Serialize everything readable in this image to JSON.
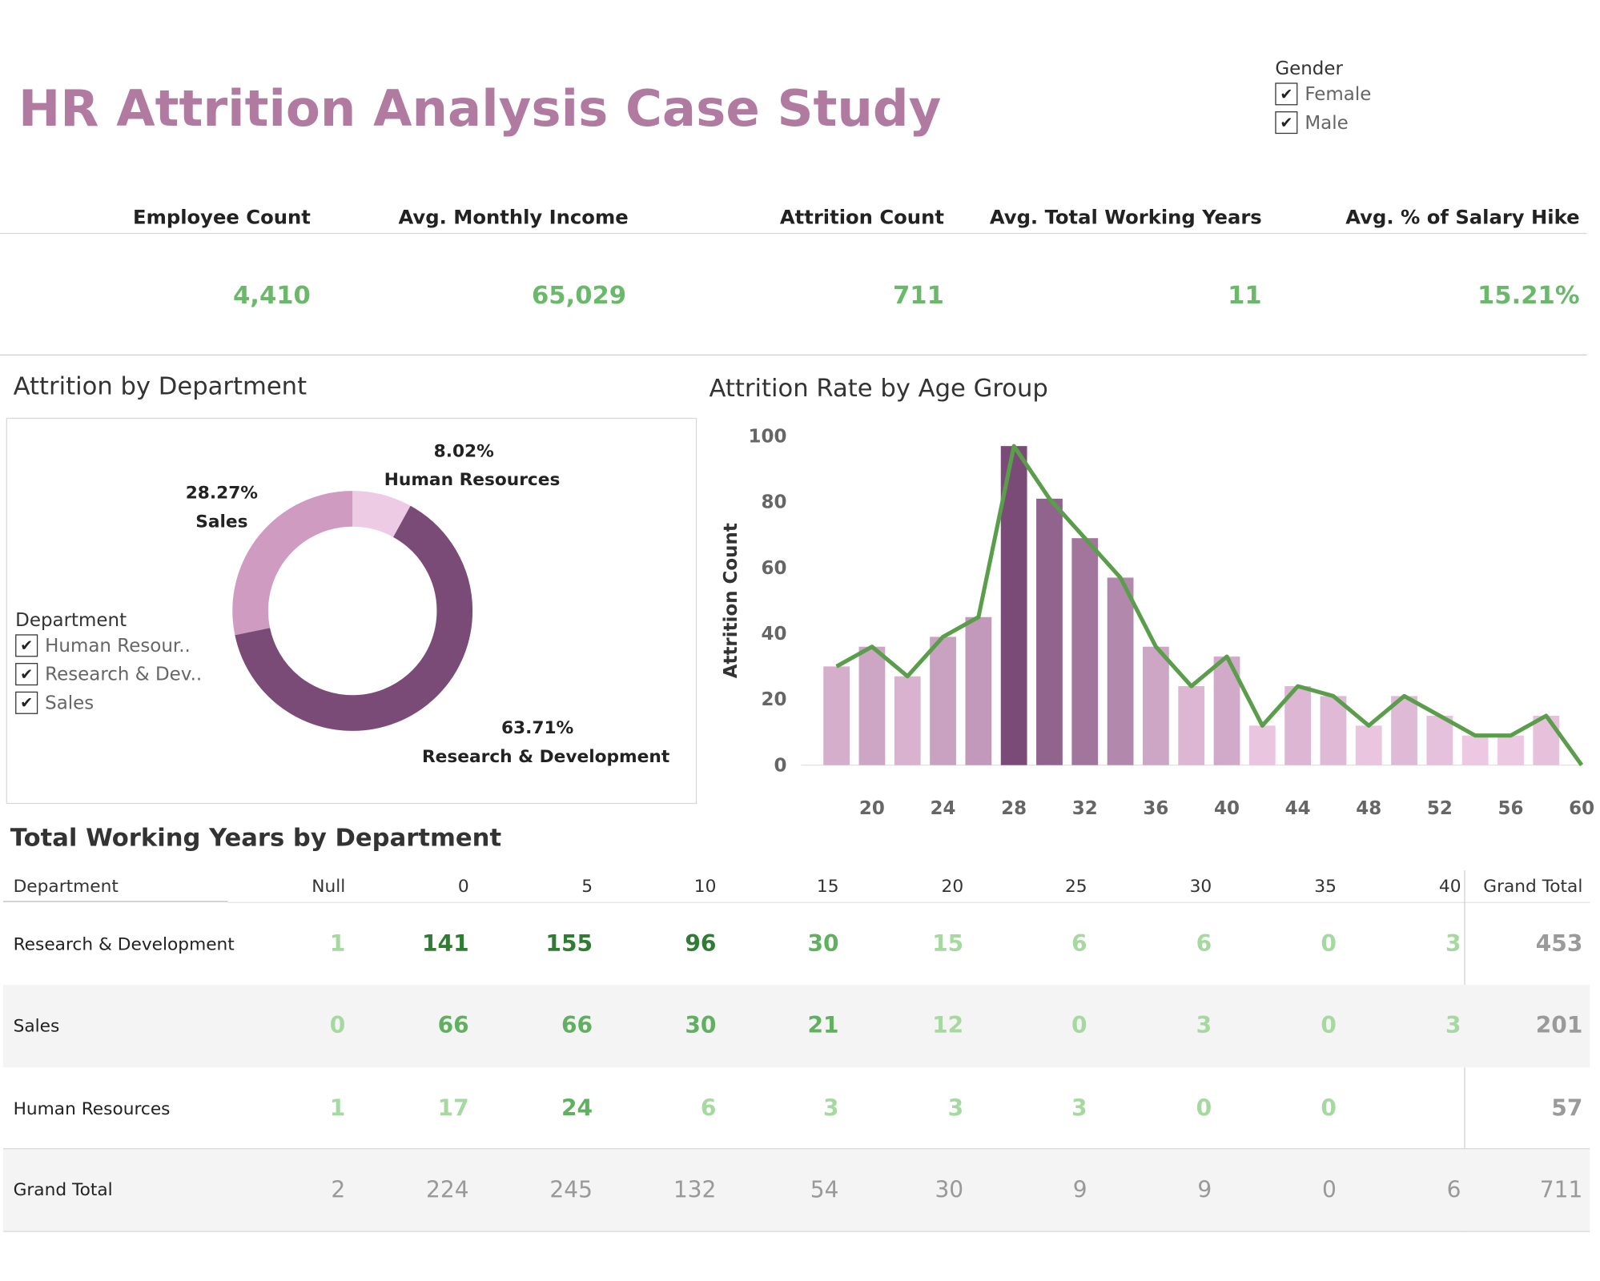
{
  "header": {
    "title": "HR Attrition Analysis Case Study"
  },
  "gender_filter": {
    "title": "Gender",
    "options": [
      {
        "label": "Female",
        "checked": true,
        "mark": "✔"
      },
      {
        "label": "Male",
        "checked": true,
        "mark": "✔"
      }
    ]
  },
  "kpis": [
    {
      "label": "Employee Count",
      "value": "4,410"
    },
    {
      "label": "Avg. Monthly Income",
      "value": "65,029"
    },
    {
      "label": "Attrition Count",
      "value": "711"
    },
    {
      "label": "Avg. Total Working Years",
      "value": "11"
    },
    {
      "label": "Avg. % of Salary Hike",
      "value": "15.21%"
    }
  ],
  "department_chart": {
    "title": "Attrition by Department",
    "legend_title": "Department",
    "legend_items": [
      {
        "label": "Human Resour..",
        "checked": true,
        "mark": "✔"
      },
      {
        "label": "Research & Dev..",
        "checked": true,
        "mark": "✔"
      },
      {
        "label": "Sales",
        "checked": true,
        "mark": "✔"
      }
    ],
    "slices": [
      {
        "name": "Human Resources",
        "pct": 8.02,
        "pct_label": "8.02%",
        "color": "#eecbe5"
      },
      {
        "name": "Research & Development",
        "pct": 63.71,
        "pct_label": "63.71%",
        "color": "#7b4b78"
      },
      {
        "name": "Sales",
        "pct": 28.27,
        "pct_label": "28.27%",
        "color": "#cf9bc0"
      }
    ]
  },
  "age_chart": {
    "title": "Attrition Rate by Age Group",
    "ylabel": "Attrition Count",
    "chart_data": {
      "type": "bar",
      "x": [
        18,
        20,
        22,
        24,
        26,
        28,
        30,
        32,
        34,
        36,
        38,
        40,
        42,
        44,
        46,
        48,
        50,
        52,
        54,
        56,
        58
      ],
      "values": [
        30,
        36,
        27,
        39,
        45,
        97,
        81,
        69,
        57,
        36,
        24,
        33,
        12,
        24,
        21,
        12,
        21,
        15,
        9,
        9,
        15
      ],
      "line": {
        "x": [
          18,
          20,
          22,
          24,
          26,
          28,
          30,
          32,
          34,
          36,
          38,
          40,
          42,
          44,
          46,
          48,
          50,
          52,
          54,
          56,
          58,
          60
        ],
        "values": [
          30,
          36,
          27,
          39,
          45,
          97,
          81,
          69,
          57,
          36,
          24,
          33,
          12,
          24,
          21,
          12,
          21,
          15,
          9,
          9,
          15,
          0
        ],
        "color": "#5a9e4b"
      },
      "ylim": [
        0,
        100
      ],
      "xlim": [
        16,
        60
      ],
      "yticks": [
        0,
        20,
        40,
        60,
        80,
        100
      ],
      "xticks": [
        20,
        24,
        28,
        32,
        36,
        40,
        44,
        48,
        52,
        56,
        60
      ],
      "grid": false,
      "color_scale": {
        "low": "#ecc8e2",
        "high": "#7b4b78"
      }
    }
  },
  "working_years_table": {
    "title": "Total Working Years by Department",
    "header": [
      "Department",
      "Null",
      "0",
      "5",
      "10",
      "15",
      "20",
      "25",
      "30",
      "35",
      "40",
      "Grand Total"
    ],
    "rows": [
      {
        "name": "Research & Development",
        "values": [
          "1",
          "141",
          "155",
          "96",
          "30",
          "15",
          "6",
          "6",
          "0",
          "3"
        ],
        "total": "453"
      },
      {
        "name": "Sales",
        "values": [
          "0",
          "66",
          "66",
          "30",
          "21",
          "12",
          "0",
          "3",
          "0",
          "3"
        ],
        "total": "201"
      },
      {
        "name": "Human Resources",
        "values": [
          "1",
          "17",
          "24",
          "6",
          "3",
          "3",
          "3",
          "0",
          "0",
          ""
        ],
        "total": "57"
      }
    ],
    "grand_total": {
      "name": "Grand Total",
      "values": [
        "2",
        "224",
        "245",
        "132",
        "54",
        "30",
        "9",
        "9",
        "0",
        "6"
      ],
      "total": "711"
    },
    "colors": {
      "high": "#2e7d32",
      "mid": "#5fb05f",
      "low": "#a6d9a0"
    }
  }
}
